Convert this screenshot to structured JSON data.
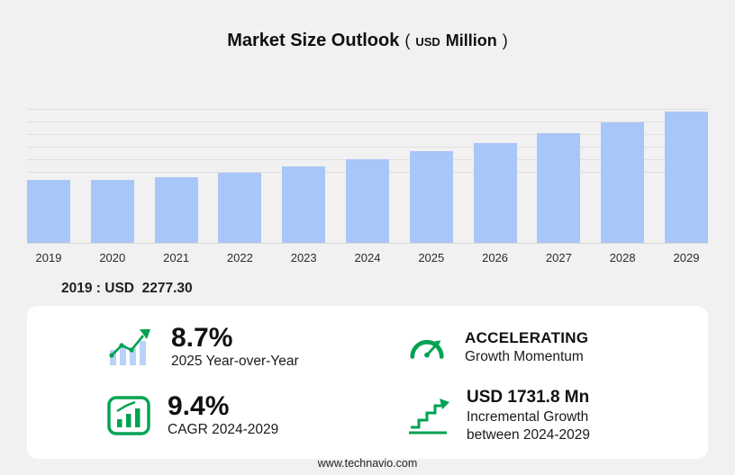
{
  "header": {
    "title": "Market Size Outlook",
    "unit_open": "(",
    "unit_currency": "USD",
    "unit_word": "Million",
    "unit_close": ")"
  },
  "chart_data": {
    "type": "bar",
    "title": "Market Size Outlook (USD Million)",
    "categories": [
      "2019",
      "2020",
      "2021",
      "2022",
      "2023",
      "2024",
      "2025",
      "2026",
      "2027",
      "2028",
      "2029"
    ],
    "values": [
      2277.3,
      2290,
      2400,
      2560,
      2790,
      3053.9,
      3319.6,
      3640,
      3990,
      4370,
      4785.7
    ],
    "xlabel": "",
    "ylabel": "",
    "ylim": [
      0,
      4900
    ],
    "grid": true,
    "legend": "none",
    "bar_color": "#a9c6f8"
  },
  "base_value": {
    "text": "2019 : USD  2277.30"
  },
  "stats": {
    "yoy": {
      "value": "8.7%",
      "label": "2025 Year-over-Year",
      "icon": "growth-bars-icon"
    },
    "momentum": {
      "value": "ACCELERATING",
      "label": "Growth Momentum",
      "icon": "speedometer-icon"
    },
    "cagr": {
      "value": "9.4%",
      "label": "CAGR 2024-2029",
      "icon": "cagr-box-chart-icon"
    },
    "incremental": {
      "value": "USD 1731.8 Mn",
      "label_line1": "Incremental Growth",
      "label_line2": "between 2024-2029",
      "icon": "incremental-growth-arrow-icon"
    }
  },
  "footer": {
    "website": "www.technavio.com"
  },
  "colors": {
    "background": "#f1f1f1",
    "bar": "#a9c6f8",
    "accent_green": "#00a251",
    "panel": "#ffffff",
    "text": "#1a1a1a",
    "gridline": "#e0e0e0"
  }
}
